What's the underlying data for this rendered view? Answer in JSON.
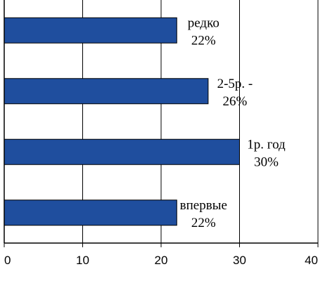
{
  "chart_data": {
    "type": "bar",
    "orientation": "horizontal",
    "categories": [
      "редко",
      "2-5р. -",
      "1р. год",
      "впервые"
    ],
    "values": [
      22,
      26,
      30,
      22
    ],
    "data_labels": [
      {
        "line1": "редко",
        "line2": "22%"
      },
      {
        "line1": "2-5р. -",
        "line2": "26%"
      },
      {
        "line1": "1р. год",
        "line2": "30%"
      },
      {
        "line1": "впервые",
        "line2": "22%"
      }
    ],
    "xlim": [
      0,
      40
    ],
    "xticks": [
      "0",
      "10",
      "20",
      "30",
      "40"
    ],
    "grid": "vertical",
    "colors": {
      "bar": "#1f4e9e",
      "bar_edge": "#000000",
      "grid": "#000000",
      "axis": "#000000"
    }
  }
}
